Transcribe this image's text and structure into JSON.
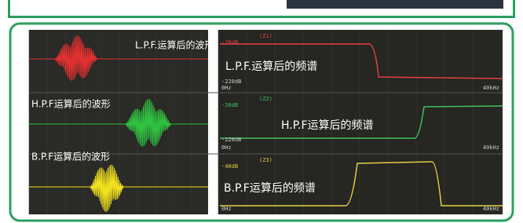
{
  "waveforms": [
    {
      "label": "L.P.F.运算后的波形"
    },
    {
      "label": "H.P.F运算后的波形"
    },
    {
      "label": "B.P.F运算后的波形"
    }
  ],
  "spectra": [
    {
      "label": "L.P.F.运算后的频谱",
      "channel": "(Z1)",
      "top": "-20dB",
      "bottom": "-220dB",
      "x_start": "0Hz",
      "x_end": "40kHz"
    },
    {
      "label": "H.P.F运算后的频谱",
      "channel": "(Z2)",
      "top": "-20dB",
      "bottom": "-220dB",
      "x_start": "0Hz",
      "x_end": "40kHz"
    },
    {
      "label": "B.P.F运算后的频谱",
      "channel": "(Z3)",
      "top": "-40dB",
      "x_start": "0Hz",
      "x_end": "40kHz"
    }
  ]
}
